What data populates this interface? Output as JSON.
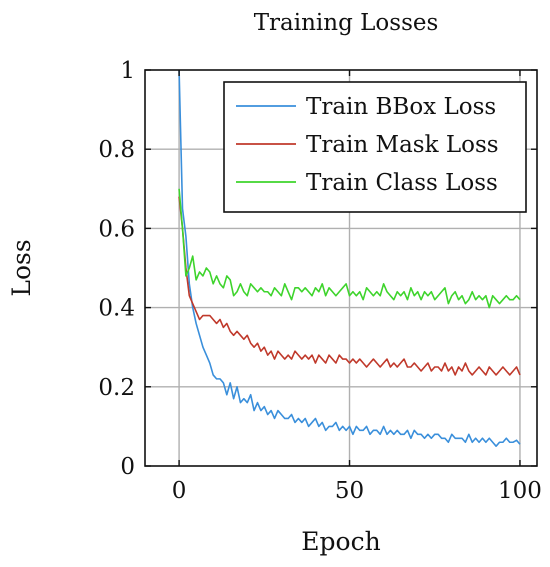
{
  "chart_data": {
    "type": "line",
    "title": "Training Losses",
    "xlabel": "Epoch",
    "ylabel": "Loss",
    "xlim": [
      -10,
      105
    ],
    "ylim": [
      0,
      1
    ],
    "xticks": [
      0,
      50,
      100
    ],
    "yticks": [
      0,
      0.2,
      0.4,
      0.6,
      0.8,
      1
    ],
    "ytick_labels": [
      "0",
      "0.2",
      "0.4",
      "0.6",
      "0.8",
      "1"
    ],
    "grid": true,
    "legend_position": "top-right",
    "series": [
      {
        "name": "Train BBox Loss",
        "color": "#3a8fdb",
        "x": [
          0,
          1,
          2,
          3,
          4,
          5,
          6,
          7,
          8,
          9,
          10,
          11,
          12,
          13,
          14,
          15,
          16,
          17,
          18,
          19,
          20,
          21,
          22,
          23,
          24,
          25,
          26,
          27,
          28,
          29,
          30,
          31,
          32,
          33,
          34,
          35,
          36,
          37,
          38,
          39,
          40,
          41,
          42,
          43,
          44,
          45,
          46,
          47,
          48,
          49,
          50,
          51,
          52,
          53,
          54,
          55,
          56,
          57,
          58,
          59,
          60,
          61,
          62,
          63,
          64,
          65,
          66,
          67,
          68,
          69,
          70,
          71,
          72,
          73,
          74,
          75,
          76,
          77,
          78,
          79,
          80,
          81,
          82,
          83,
          84,
          85,
          86,
          87,
          88,
          89,
          90,
          91,
          92,
          93,
          94,
          95,
          96,
          97,
          98,
          99,
          100
        ],
        "values": [
          1.0,
          0.65,
          0.58,
          0.46,
          0.4,
          0.36,
          0.33,
          0.3,
          0.28,
          0.26,
          0.23,
          0.22,
          0.22,
          0.21,
          0.18,
          0.21,
          0.17,
          0.2,
          0.16,
          0.17,
          0.16,
          0.18,
          0.14,
          0.16,
          0.14,
          0.15,
          0.13,
          0.14,
          0.12,
          0.14,
          0.13,
          0.12,
          0.12,
          0.13,
          0.11,
          0.12,
          0.11,
          0.12,
          0.1,
          0.11,
          0.12,
          0.1,
          0.11,
          0.09,
          0.1,
          0.1,
          0.11,
          0.09,
          0.1,
          0.09,
          0.1,
          0.08,
          0.1,
          0.09,
          0.09,
          0.1,
          0.08,
          0.09,
          0.09,
          0.08,
          0.1,
          0.08,
          0.09,
          0.08,
          0.09,
          0.08,
          0.08,
          0.09,
          0.07,
          0.09,
          0.08,
          0.08,
          0.07,
          0.08,
          0.07,
          0.08,
          0.08,
          0.07,
          0.07,
          0.06,
          0.08,
          0.07,
          0.07,
          0.07,
          0.06,
          0.08,
          0.06,
          0.07,
          0.06,
          0.07,
          0.06,
          0.07,
          0.06,
          0.05,
          0.06,
          0.06,
          0.07,
          0.06,
          0.06,
          0.065,
          0.055
        ]
      },
      {
        "name": "Train Mask Loss",
        "color": "#c0392b",
        "x": [
          0,
          1,
          2,
          3,
          4,
          5,
          6,
          7,
          8,
          9,
          10,
          11,
          12,
          13,
          14,
          15,
          16,
          17,
          18,
          19,
          20,
          21,
          22,
          23,
          24,
          25,
          26,
          27,
          28,
          29,
          30,
          31,
          32,
          33,
          34,
          35,
          36,
          37,
          38,
          39,
          40,
          41,
          42,
          43,
          44,
          45,
          46,
          47,
          48,
          49,
          50,
          51,
          52,
          53,
          54,
          55,
          56,
          57,
          58,
          59,
          60,
          61,
          62,
          63,
          64,
          65,
          66,
          67,
          68,
          69,
          70,
          71,
          72,
          73,
          74,
          75,
          76,
          77,
          78,
          79,
          80,
          81,
          82,
          83,
          84,
          85,
          86,
          87,
          88,
          89,
          90,
          91,
          92,
          93,
          94,
          95,
          96,
          97,
          98,
          99,
          100
        ],
        "values": [
          0.68,
          0.6,
          0.5,
          0.43,
          0.41,
          0.39,
          0.37,
          0.38,
          0.38,
          0.38,
          0.37,
          0.36,
          0.37,
          0.35,
          0.36,
          0.34,
          0.33,
          0.34,
          0.33,
          0.32,
          0.33,
          0.31,
          0.3,
          0.31,
          0.29,
          0.3,
          0.28,
          0.29,
          0.27,
          0.29,
          0.28,
          0.27,
          0.28,
          0.27,
          0.29,
          0.28,
          0.27,
          0.28,
          0.27,
          0.28,
          0.26,
          0.28,
          0.27,
          0.26,
          0.28,
          0.27,
          0.26,
          0.28,
          0.27,
          0.27,
          0.26,
          0.27,
          0.26,
          0.27,
          0.26,
          0.25,
          0.26,
          0.27,
          0.26,
          0.25,
          0.26,
          0.27,
          0.25,
          0.26,
          0.25,
          0.26,
          0.27,
          0.25,
          0.25,
          0.26,
          0.25,
          0.24,
          0.25,
          0.26,
          0.24,
          0.25,
          0.25,
          0.24,
          0.26,
          0.24,
          0.25,
          0.23,
          0.25,
          0.24,
          0.26,
          0.24,
          0.23,
          0.24,
          0.25,
          0.24,
          0.23,
          0.25,
          0.24,
          0.23,
          0.24,
          0.25,
          0.24,
          0.23,
          0.24,
          0.25,
          0.23
        ]
      },
      {
        "name": "Train Class Loss",
        "color": "#3ed42c",
        "x": [
          0,
          1,
          2,
          3,
          4,
          5,
          6,
          7,
          8,
          9,
          10,
          11,
          12,
          13,
          14,
          15,
          16,
          17,
          18,
          19,
          20,
          21,
          22,
          23,
          24,
          25,
          26,
          27,
          28,
          29,
          30,
          31,
          32,
          33,
          34,
          35,
          36,
          37,
          38,
          39,
          40,
          41,
          42,
          43,
          44,
          45,
          46,
          47,
          48,
          49,
          50,
          51,
          52,
          53,
          54,
          55,
          56,
          57,
          58,
          59,
          60,
          61,
          62,
          63,
          64,
          65,
          66,
          67,
          68,
          69,
          70,
          71,
          72,
          73,
          74,
          75,
          76,
          77,
          78,
          79,
          80,
          81,
          82,
          83,
          84,
          85,
          86,
          87,
          88,
          89,
          90,
          91,
          92,
          93,
          94,
          95,
          96,
          97,
          98,
          99,
          100
        ],
        "values": [
          0.7,
          0.6,
          0.48,
          0.5,
          0.53,
          0.47,
          0.49,
          0.48,
          0.5,
          0.49,
          0.46,
          0.48,
          0.46,
          0.45,
          0.48,
          0.47,
          0.43,
          0.44,
          0.46,
          0.44,
          0.43,
          0.46,
          0.45,
          0.44,
          0.45,
          0.44,
          0.44,
          0.43,
          0.45,
          0.44,
          0.43,
          0.46,
          0.44,
          0.42,
          0.45,
          0.45,
          0.44,
          0.45,
          0.44,
          0.43,
          0.45,
          0.44,
          0.46,
          0.43,
          0.45,
          0.44,
          0.43,
          0.44,
          0.45,
          0.46,
          0.43,
          0.44,
          0.43,
          0.44,
          0.42,
          0.45,
          0.44,
          0.43,
          0.44,
          0.43,
          0.46,
          0.44,
          0.43,
          0.42,
          0.44,
          0.43,
          0.44,
          0.42,
          0.45,
          0.43,
          0.44,
          0.42,
          0.44,
          0.43,
          0.44,
          0.42,
          0.43,
          0.44,
          0.45,
          0.41,
          0.43,
          0.44,
          0.42,
          0.43,
          0.41,
          0.42,
          0.44,
          0.42,
          0.43,
          0.42,
          0.43,
          0.4,
          0.43,
          0.42,
          0.41,
          0.42,
          0.43,
          0.42,
          0.42,
          0.43,
          0.42
        ]
      }
    ]
  }
}
